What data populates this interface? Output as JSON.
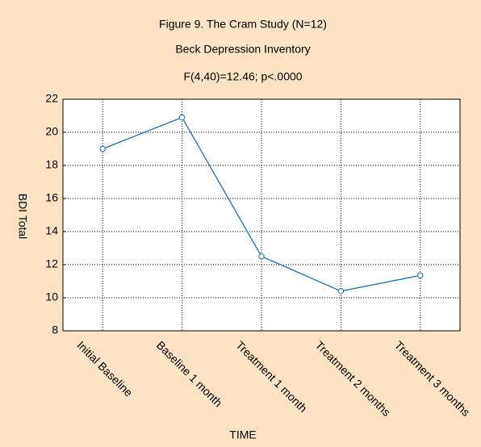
{
  "chart_data": {
    "type": "line",
    "title": "Figure 9.  The Cram Study (N=12)",
    "subtitle": "Beck Depression Inventory",
    "annotation": "F(4,40)=12.46; p<.0000",
    "y_label": "BDI Total",
    "x_label": "TIME",
    "categories": [
      "Initial Baseline",
      "Baseline 1 month",
      "Treatment 1 month",
      "Treatment 2 months",
      "Treatment 3 months"
    ],
    "series": [
      {
        "name": "BDI Total",
        "color": "#1f6fb5",
        "values": [
          19,
          20.9,
          12.5,
          10.4,
          11.35
        ]
      }
    ],
    "ylim": [
      8,
      22
    ],
    "yticks": [
      8,
      10,
      12,
      14,
      16,
      18,
      20,
      22
    ],
    "grid": true
  }
}
